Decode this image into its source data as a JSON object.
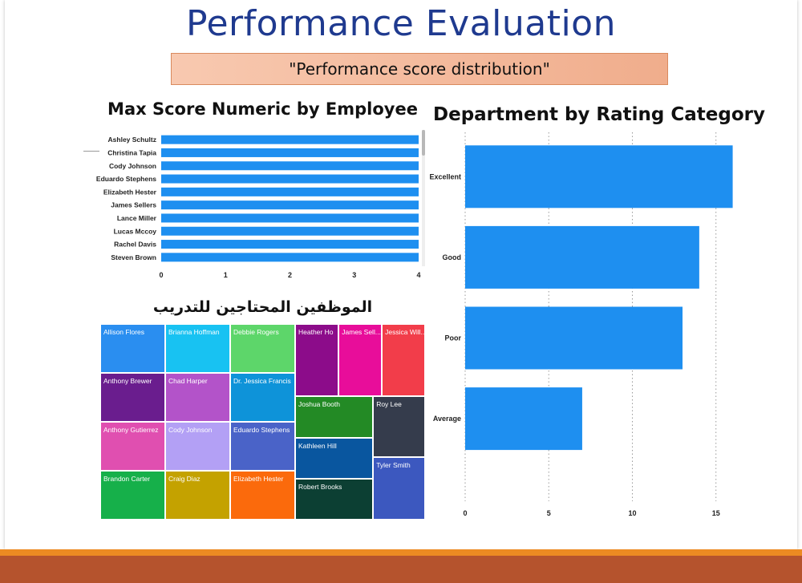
{
  "slide": {
    "title": "Performance Evaluation",
    "subtitle": "\"Performance score distribution\""
  },
  "colors": {
    "bar": "#1e8ff0",
    "title": "#1f3a8f",
    "subtitle_bg": "#f3b99a",
    "bottom_orange": "#ec8a22",
    "bottom_rust": "#b5532d"
  },
  "chart_data": [
    {
      "type": "bar",
      "orientation": "horizontal",
      "title": "Max Score Numeric by Employee",
      "categories": [
        "Ashley Schultz",
        "Christina Tapia",
        "Cody Johnson",
        "Eduardo Stephens",
        "Elizabeth Hester",
        "James Sellers",
        "Lance Miller",
        "Lucas Mccoy",
        "Rachel Davis",
        "Steven Brown"
      ],
      "values": [
        4,
        4,
        4,
        4,
        4,
        4,
        4,
        4,
        4,
        4
      ],
      "xlim": [
        0,
        4
      ],
      "xticks": [
        0,
        1,
        2,
        3,
        4
      ],
      "grid": false
    },
    {
      "type": "bar",
      "orientation": "horizontal",
      "title": "Department by Rating Category",
      "categories": [
        "Excellent",
        "Good",
        "Poor",
        "Average"
      ],
      "values": [
        16,
        14,
        13,
        7
      ],
      "xlim": [
        0,
        16.5
      ],
      "xticks": [
        0,
        5,
        10,
        15
      ],
      "grid": true
    },
    {
      "type": "treemap",
      "title": "الموظفين المحتاجين للتدريب",
      "items": [
        {
          "label": "Allison Flores",
          "color": "#2a8ef0"
        },
        {
          "label": "Brianna Hoffman",
          "color": "#18c2f2"
        },
        {
          "label": "Debbie Rogers",
          "color": "#5dd66a"
        },
        {
          "label": "Heather Ho",
          "color": "#8c0c8a"
        },
        {
          "label": "James Sell...",
          "color": "#e80d9a"
        },
        {
          "label": "Jessica Will...",
          "color": "#f23d4a"
        },
        {
          "label": "Anthony Brewer",
          "color": "#6a1d8e"
        },
        {
          "label": "Chad Harper",
          "color": "#b353c9"
        },
        {
          "label": "Dr. Jessica Francis",
          "color": "#0e93d9"
        },
        {
          "label": "Joshua Booth",
          "color": "#238a25"
        },
        {
          "label": "Roy Lee",
          "color": "#353c4c"
        },
        {
          "label": "Anthony Gutierrez",
          "color": "#e04fb0"
        },
        {
          "label": "Cody Johnson",
          "color": "#b3a0f5"
        },
        {
          "label": "Eduardo Stephens",
          "color": "#4a63c8"
        },
        {
          "label": "Kathleen Hill",
          "color": "#09569f"
        },
        {
          "label": "Tyler Smith",
          "color": "#3c58bf"
        },
        {
          "label": "Brandon Carter",
          "color": "#16b04a"
        },
        {
          "label": "Craig Diaz",
          "color": "#c4a200"
        },
        {
          "label": "Elizabeth Hester",
          "color": "#fb6a0c"
        },
        {
          "label": "Robert Brooks",
          "color": "#0c3f33"
        }
      ]
    }
  ]
}
